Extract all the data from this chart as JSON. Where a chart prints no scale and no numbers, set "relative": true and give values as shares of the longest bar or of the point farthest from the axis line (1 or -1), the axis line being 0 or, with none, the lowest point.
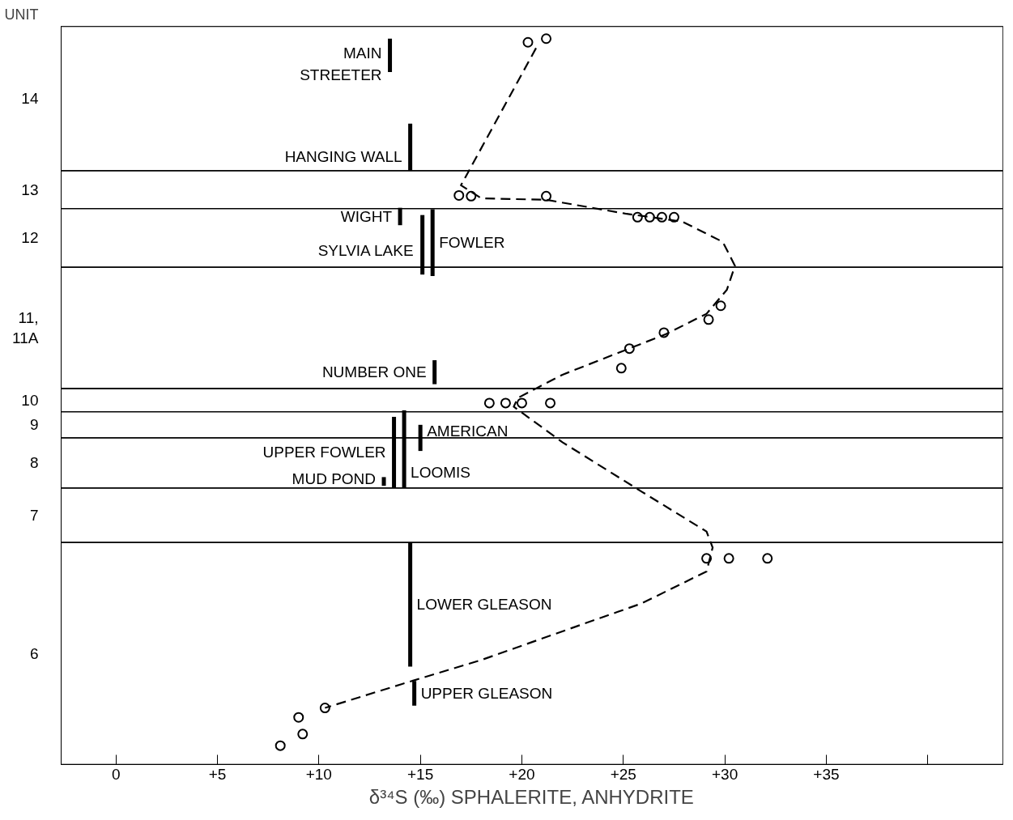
{
  "chart_data": {
    "type": "scatter",
    "xlabel": "δ³⁴S (‰) SPHALERITE, ANHYDRITE",
    "ylabel": "UNIT",
    "relative": true,
    "xlim": [
      -2.7,
      43.7
    ],
    "xticks": [
      0,
      {
        "value": 5,
        "label": "+5"
      },
      {
        "value": 10,
        "label": "+10"
      },
      {
        "value": 15,
        "label": "+15"
      },
      {
        "value": 20,
        "label": "+20"
      },
      {
        "value": 25,
        "label": "+25"
      },
      {
        "value": 30,
        "label": "+30"
      },
      {
        "value": 35,
        "label": "+35"
      },
      {
        "value": 40,
        "label": null
      }
    ],
    "bands": [
      {
        "axis": "y",
        "from": 0.818,
        "to": 1.017,
        "label": "14",
        "color": "#ffffff"
      },
      {
        "axis": "y",
        "from": 0.766,
        "to": 0.818,
        "label": "13",
        "color": "#ffffff"
      },
      {
        "axis": "y",
        "from": 0.685,
        "to": 0.766,
        "label": "12",
        "color": "#ffffff"
      },
      {
        "axis": "y",
        "from": 0.518,
        "to": 0.685,
        "label": "11,\n11A",
        "color": "#ffffff"
      },
      {
        "axis": "y",
        "from": 0.486,
        "to": 0.518,
        "label": "10",
        "color": "#ffffff"
      },
      {
        "axis": "y",
        "from": 0.45,
        "to": 0.486,
        "label": "9",
        "color": "#ffffff"
      },
      {
        "axis": "y",
        "from": 0.381,
        "to": 0.45,
        "label": "8",
        "color": "#ffffff"
      },
      {
        "axis": "y",
        "from": 0.306,
        "to": 0.381,
        "label": "7",
        "color": "#ffffff"
      },
      {
        "axis": "y",
        "from": 0,
        "to": 0.306,
        "label": "6",
        "color": "#ffffff"
      }
    ],
    "grid": false,
    "series": [
      {
        "type": "scatter",
        "marker": "circle",
        "color": "#000000",
        "x": [
          20.3,
          21.2,
          16.9,
          17.5,
          21.2,
          25.7,
          26.3,
          26.9,
          27.5,
          29.8,
          29.2,
          27.0,
          25.3,
          24.9,
          18.4,
          19.2,
          20.0,
          21.4,
          29.1,
          30.2,
          32.1,
          10.3,
          9.0,
          9.2,
          8.1
        ],
        "values": [
          0.995,
          1,
          0.784,
          0.783,
          0.783,
          0.754,
          0.754,
          0.754,
          0.754,
          0.632,
          0.613,
          0.595,
          0.573,
          0.546,
          0.498,
          0.498,
          0.498,
          0.498,
          0.284,
          0.284,
          0.284,
          0.078,
          0.065,
          0.042,
          0.026
        ]
      },
      {
        "type": "line",
        "line_style": "dashed",
        "color": "#000000",
        "x": [
          20.7,
          17.0,
          18.0,
          21.2,
          25.1,
          27.9,
          29.9,
          30.5,
          30.1,
          29.1,
          27.1,
          25.1,
          22.0,
          19.8,
          19.6,
          22.0,
          25.9,
          29.1,
          29.4,
          29.1,
          25.9,
          18.0,
          14.1,
          10.3
        ],
        "values": [
          0.987,
          0.798,
          0.78,
          0.778,
          0.759,
          0.748,
          0.72,
          0.687,
          0.654,
          0.621,
          0.593,
          0.571,
          0.537,
          0.505,
          0.493,
          0.444,
          0.376,
          0.321,
          0.299,
          0.266,
          0.222,
          0.144,
          0.111,
          0.078
        ]
      },
      {
        "type": "line",
        "name": "MAIN\nSTREETER",
        "color": "#000000",
        "x": [
          13.5,
          13.5
        ],
        "values": [
          1.0,
          0.954
        ]
      },
      {
        "type": "line",
        "name": "HANGING WALL",
        "color": "#000000",
        "x": [
          14.5,
          14.5
        ],
        "values": [
          0.883,
          0.818
        ]
      },
      {
        "type": "line",
        "name": "WIGHT",
        "color": "#000000",
        "x": [
          14.0,
          14.0
        ],
        "values": [
          0.767,
          0.743
        ]
      },
      {
        "type": "line",
        "name": "FOWLER",
        "color": "#000000",
        "x": [
          15.6,
          15.6
        ],
        "values": [
          0.765,
          0.673
        ]
      },
      {
        "type": "line",
        "name": "SYLVIA LAKE",
        "color": "#000000",
        "x": [
          15.1,
          15.1
        ],
        "values": [
          0.757,
          0.675
        ]
      },
      {
        "type": "line",
        "name": "NUMBER ONE",
        "color": "#000000",
        "x": [
          15.7,
          15.7
        ],
        "values": [
          0.557,
          0.524
        ]
      },
      {
        "type": "line",
        "name": "AMERICAN",
        "color": "#000000",
        "x": [
          15.0,
          15.0
        ],
        "values": [
          0.468,
          0.432
        ]
      },
      {
        "type": "line",
        "name": "UPPER FOWLER",
        "color": "#000000",
        "x": [
          13.7,
          13.7
        ],
        "values": [
          0.479,
          0.381
        ]
      },
      {
        "type": "line",
        "name": "LOOMIS",
        "color": "#000000",
        "x": [
          14.2,
          14.2
        ],
        "values": [
          0.488,
          0.381
        ]
      },
      {
        "type": "line",
        "name": "MUD POND",
        "color": "#000000",
        "x": [
          13.2,
          13.2
        ],
        "values": [
          0.396,
          0.384
        ]
      },
      {
        "type": "line",
        "name": "LOWER GLEASON",
        "color": "#000000",
        "x": [
          14.5,
          14.5
        ],
        "values": [
          0.306,
          0.135
        ]
      },
      {
        "type": "line",
        "name": "UPPER GLEASON",
        "color": "#000000",
        "x": [
          14.7,
          14.7
        ],
        "values": [
          0.115,
          0.081
        ]
      }
    ]
  }
}
